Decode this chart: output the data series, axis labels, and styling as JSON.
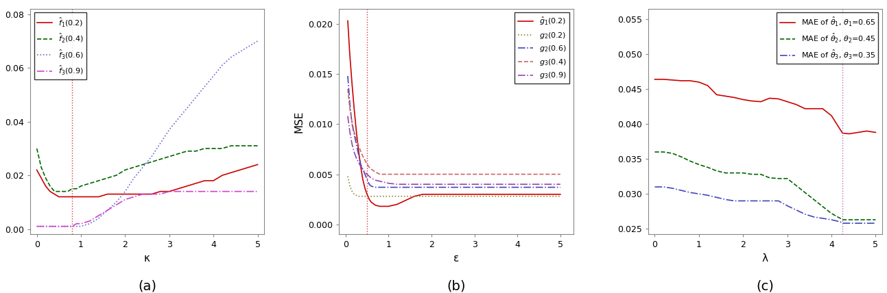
{
  "panel_a": {
    "xlabel": "κ",
    "ylabel": "",
    "label": "(a)",
    "ylim": [
      -0.002,
      0.082
    ],
    "xlim": [
      -0.15,
      5.15
    ],
    "yticks": [
      0.0,
      0.02,
      0.04,
      0.06,
      0.08
    ],
    "xticks": [
      0,
      1,
      2,
      3,
      4,
      5
    ],
    "vline_x": 0.8,
    "vline_color": "#cc0000",
    "legend_labels": [
      "$\\hat{f}_1(0.2)$",
      "$\\hat{f}_2(0.4)$",
      "$\\hat{f}_3(0.6)$",
      "$\\hat{f}_3(0.9)$"
    ],
    "line_colors": [
      "#cc0000",
      "#006600",
      "#6666cc",
      "#cc44cc"
    ],
    "line_styles": [
      "-",
      "--",
      ":",
      "-."
    ],
    "series": {
      "f1": {
        "x": [
          0.0,
          0.1,
          0.2,
          0.3,
          0.4,
          0.5,
          0.6,
          0.7,
          0.8,
          0.9,
          1.0,
          1.2,
          1.4,
          1.6,
          1.8,
          2.0,
          2.2,
          2.4,
          2.6,
          2.8,
          3.0,
          3.2,
          3.4,
          3.6,
          3.8,
          4.0,
          4.2,
          4.4,
          4.6,
          4.8,
          5.0
        ],
        "y": [
          0.022,
          0.019,
          0.016,
          0.014,
          0.013,
          0.012,
          0.012,
          0.012,
          0.012,
          0.012,
          0.012,
          0.012,
          0.012,
          0.013,
          0.013,
          0.013,
          0.013,
          0.013,
          0.013,
          0.014,
          0.014,
          0.015,
          0.016,
          0.017,
          0.018,
          0.018,
          0.02,
          0.021,
          0.022,
          0.023,
          0.024
        ]
      },
      "f2": {
        "x": [
          0.0,
          0.1,
          0.2,
          0.3,
          0.4,
          0.5,
          0.6,
          0.7,
          0.8,
          0.9,
          1.0,
          1.2,
          1.4,
          1.6,
          1.8,
          2.0,
          2.2,
          2.4,
          2.6,
          2.8,
          3.0,
          3.2,
          3.4,
          3.6,
          3.8,
          4.0,
          4.2,
          4.4,
          4.6,
          4.8,
          5.0
        ],
        "y": [
          0.03,
          0.023,
          0.019,
          0.016,
          0.014,
          0.014,
          0.014,
          0.014,
          0.015,
          0.015,
          0.016,
          0.017,
          0.018,
          0.019,
          0.02,
          0.022,
          0.023,
          0.024,
          0.025,
          0.026,
          0.027,
          0.028,
          0.029,
          0.029,
          0.03,
          0.03,
          0.03,
          0.031,
          0.031,
          0.031,
          0.031
        ]
      },
      "f3": {
        "x": [
          0.0,
          0.1,
          0.2,
          0.3,
          0.4,
          0.5,
          0.6,
          0.7,
          0.8,
          0.9,
          1.0,
          1.2,
          1.4,
          1.6,
          1.8,
          2.0,
          2.2,
          2.4,
          2.6,
          2.8,
          3.0,
          3.2,
          3.4,
          3.6,
          3.8,
          4.0,
          4.2,
          4.4,
          4.6,
          4.8,
          5.0
        ],
        "y": [
          0.001,
          0.001,
          0.001,
          0.001,
          0.001,
          0.001,
          0.001,
          0.001,
          0.001,
          0.001,
          0.001,
          0.002,
          0.004,
          0.007,
          0.01,
          0.014,
          0.019,
          0.023,
          0.027,
          0.032,
          0.037,
          0.041,
          0.045,
          0.049,
          0.053,
          0.057,
          0.061,
          0.064,
          0.066,
          0.068,
          0.07
        ]
      },
      "f4": {
        "x": [
          0.0,
          0.1,
          0.2,
          0.3,
          0.4,
          0.5,
          0.6,
          0.7,
          0.8,
          0.9,
          1.0,
          1.2,
          1.4,
          1.6,
          1.8,
          2.0,
          2.2,
          2.4,
          2.6,
          2.8,
          3.0,
          3.2,
          3.4,
          3.6,
          3.8,
          4.0,
          4.2,
          4.4,
          4.6,
          4.8,
          5.0
        ],
        "y": [
          0.001,
          0.001,
          0.001,
          0.001,
          0.001,
          0.001,
          0.001,
          0.001,
          0.001,
          0.002,
          0.002,
          0.003,
          0.005,
          0.007,
          0.009,
          0.011,
          0.012,
          0.013,
          0.013,
          0.013,
          0.014,
          0.014,
          0.014,
          0.014,
          0.014,
          0.014,
          0.014,
          0.014,
          0.014,
          0.014,
          0.014
        ]
      }
    }
  },
  "panel_b": {
    "xlabel": "ε",
    "ylabel": "MSE",
    "label": "(b)",
    "ylim": [
      -0.001,
      0.0215
    ],
    "xlim": [
      -0.15,
      5.3
    ],
    "yticks": [
      0.0,
      0.005,
      0.01,
      0.015,
      0.02
    ],
    "xticks": [
      0,
      1,
      2,
      3,
      4,
      5
    ],
    "vline_x": 0.5,
    "vline_color": "#cc0000",
    "legend_labels": [
      "$\\hat{g}_1(0.2)$",
      "$g_2(0.2)$",
      "$g_2(0.6)$",
      "$g_3(0.4)$",
      "$g_3(0.9)$"
    ],
    "line_colors": [
      "#cc0000",
      "#888833",
      "#4444bb",
      "#cc6666",
      "#9944aa"
    ],
    "line_styles": [
      "-",
      ":",
      "-.",
      "--",
      "-."
    ],
    "series": {
      "g1": {
        "x": [
          0.05,
          0.1,
          0.15,
          0.2,
          0.25,
          0.3,
          0.35,
          0.4,
          0.45,
          0.5,
          0.55,
          0.6,
          0.7,
          0.8,
          0.9,
          1.0,
          1.2,
          1.4,
          1.6,
          1.8,
          2.0,
          2.2,
          2.5,
          3.0,
          3.5,
          4.0,
          4.5,
          5.0
        ],
        "y": [
          0.0203,
          0.0168,
          0.014,
          0.0115,
          0.0093,
          0.0074,
          0.0058,
          0.0045,
          0.0036,
          0.003,
          0.0025,
          0.0022,
          0.0019,
          0.0018,
          0.0018,
          0.0018,
          0.002,
          0.0024,
          0.0028,
          0.003,
          0.003,
          0.003,
          0.003,
          0.003,
          0.003,
          0.003,
          0.003,
          0.003
        ]
      },
      "g2a": {
        "x": [
          0.05,
          0.1,
          0.15,
          0.2,
          0.25,
          0.3,
          0.35,
          0.4,
          0.45,
          0.5,
          0.55,
          0.6,
          0.7,
          0.8,
          0.9,
          1.0,
          1.2,
          1.4,
          1.6,
          1.8,
          2.0,
          2.5,
          3.0,
          3.5,
          4.0,
          4.5,
          5.0
        ],
        "y": [
          0.0048,
          0.0038,
          0.0033,
          0.003,
          0.0029,
          0.0028,
          0.0028,
          0.0028,
          0.0028,
          0.0028,
          0.0028,
          0.0028,
          0.0028,
          0.0028,
          0.0028,
          0.0028,
          0.0028,
          0.0028,
          0.0028,
          0.0028,
          0.0028,
          0.0028,
          0.0028,
          0.0028,
          0.0028,
          0.0028,
          0.0028
        ]
      },
      "g2b": {
        "x": [
          0.05,
          0.1,
          0.15,
          0.2,
          0.25,
          0.3,
          0.35,
          0.4,
          0.45,
          0.5,
          0.55,
          0.6,
          0.7,
          0.8,
          0.9,
          1.0,
          1.2,
          1.4,
          1.6,
          1.8,
          2.0,
          2.5,
          3.0,
          3.5,
          4.0,
          4.5,
          5.0
        ],
        "y": [
          0.0148,
          0.012,
          0.01,
          0.009,
          0.008,
          0.007,
          0.006,
          0.0055,
          0.005,
          0.0045,
          0.004,
          0.0038,
          0.0037,
          0.0037,
          0.0037,
          0.0037,
          0.0037,
          0.0037,
          0.0037,
          0.0037,
          0.0037,
          0.0037,
          0.0037,
          0.0037,
          0.0037,
          0.0037,
          0.0037
        ]
      },
      "g3a": {
        "x": [
          0.05,
          0.1,
          0.15,
          0.2,
          0.25,
          0.3,
          0.35,
          0.4,
          0.45,
          0.5,
          0.55,
          0.6,
          0.7,
          0.8,
          0.9,
          1.0,
          1.2,
          1.4,
          1.6,
          1.8,
          2.0,
          2.5,
          3.0,
          3.5,
          4.0,
          4.5,
          5.0
        ],
        "y": [
          0.0135,
          0.0115,
          0.0102,
          0.0092,
          0.0085,
          0.0079,
          0.0073,
          0.0068,
          0.0064,
          0.006,
          0.0057,
          0.0055,
          0.0052,
          0.005,
          0.005,
          0.005,
          0.005,
          0.005,
          0.005,
          0.005,
          0.005,
          0.005,
          0.005,
          0.005,
          0.005,
          0.005,
          0.005
        ]
      },
      "g3b": {
        "x": [
          0.05,
          0.1,
          0.15,
          0.2,
          0.25,
          0.3,
          0.35,
          0.4,
          0.45,
          0.5,
          0.55,
          0.6,
          0.7,
          0.8,
          0.9,
          1.0,
          1.2,
          1.4,
          1.6,
          1.8,
          2.0,
          2.5,
          3.0,
          3.5,
          4.0,
          4.5,
          5.0
        ],
        "y": [
          0.0108,
          0.0092,
          0.008,
          0.0072,
          0.0066,
          0.0062,
          0.0058,
          0.0055,
          0.0052,
          0.005,
          0.0048,
          0.0046,
          0.0044,
          0.0043,
          0.0042,
          0.0041,
          0.004,
          0.004,
          0.004,
          0.004,
          0.004,
          0.004,
          0.004,
          0.004,
          0.004,
          0.004,
          0.004
        ]
      }
    }
  },
  "panel_c": {
    "xlabel": "λ",
    "ylabel": "",
    "label": "(c)",
    "ylim": [
      0.0242,
      0.0565
    ],
    "xlim": [
      -0.15,
      5.15
    ],
    "yticks": [
      0.025,
      0.03,
      0.035,
      0.04,
      0.045,
      0.05,
      0.055
    ],
    "xticks": [
      0,
      1,
      2,
      3,
      4,
      5
    ],
    "vline_x": 4.25,
    "vline_color": "#aa44aa",
    "legend_labels": [
      "MAE of $\\hat{\\theta}_1$, $\\theta_1$=0.65",
      "MAE of $\\hat{\\theta}_2$, $\\theta_2$=0.45",
      "MAE of $\\hat{\\theta}_3$, $\\theta_3$=0.35"
    ],
    "line_colors": [
      "#cc0000",
      "#006600",
      "#4444bb"
    ],
    "line_styles": [
      "-",
      "--",
      "-."
    ],
    "series": {
      "th1": {
        "x": [
          0.0,
          0.2,
          0.4,
          0.6,
          0.8,
          1.0,
          1.2,
          1.4,
          1.6,
          1.8,
          2.0,
          2.2,
          2.4,
          2.6,
          2.8,
          3.0,
          3.2,
          3.4,
          3.6,
          3.8,
          4.0,
          4.2,
          4.25,
          4.4,
          4.6,
          4.8,
          5.0
        ],
        "y": [
          0.0464,
          0.0464,
          0.0463,
          0.0462,
          0.0462,
          0.046,
          0.0455,
          0.0442,
          0.044,
          0.0438,
          0.0435,
          0.0433,
          0.0432,
          0.0437,
          0.0436,
          0.0432,
          0.0428,
          0.0422,
          0.0422,
          0.0422,
          0.0412,
          0.0392,
          0.0387,
          0.0386,
          0.0388,
          0.039,
          0.0388
        ]
      },
      "th2": {
        "x": [
          0.0,
          0.2,
          0.4,
          0.6,
          0.8,
          1.0,
          1.2,
          1.4,
          1.6,
          1.8,
          2.0,
          2.2,
          2.4,
          2.6,
          2.8,
          3.0,
          3.2,
          3.4,
          3.6,
          3.8,
          4.0,
          4.2,
          4.25,
          4.4,
          4.6,
          4.8,
          5.0
        ],
        "y": [
          0.036,
          0.036,
          0.0358,
          0.0353,
          0.0347,
          0.0342,
          0.0338,
          0.0333,
          0.033,
          0.033,
          0.033,
          0.0328,
          0.0328,
          0.0323,
          0.0322,
          0.0322,
          0.0312,
          0.0302,
          0.0292,
          0.0282,
          0.0272,
          0.0265,
          0.0263,
          0.0263,
          0.0263,
          0.0263,
          0.0263
        ]
      },
      "th3": {
        "x": [
          0.0,
          0.2,
          0.4,
          0.6,
          0.8,
          1.0,
          1.2,
          1.4,
          1.6,
          1.8,
          2.0,
          2.2,
          2.4,
          2.6,
          2.8,
          3.0,
          3.2,
          3.4,
          3.6,
          3.8,
          4.0,
          4.2,
          4.25,
          4.4,
          4.6,
          4.8,
          5.0
        ],
        "y": [
          0.031,
          0.031,
          0.0308,
          0.0305,
          0.0302,
          0.03,
          0.0298,
          0.0295,
          0.0292,
          0.029,
          0.029,
          0.029,
          0.029,
          0.029,
          0.029,
          0.0283,
          0.0277,
          0.0271,
          0.0267,
          0.0265,
          0.0263,
          0.026,
          0.0258,
          0.0258,
          0.0258,
          0.0258,
          0.0258
        ]
      }
    }
  },
  "fig_background": "#ffffff",
  "label_fontsize": 14,
  "tick_fontsize": 9,
  "legend_fontsize": 8,
  "line_width": 1.2
}
